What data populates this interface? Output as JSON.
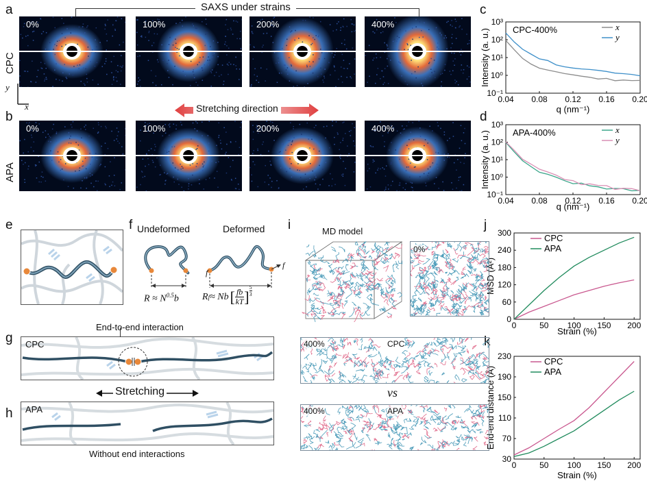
{
  "panels": {
    "a": "a",
    "b": "b",
    "c": "c",
    "d": "d",
    "e": "e",
    "f": "f",
    "g": "g",
    "h": "h",
    "i": "i",
    "j": "j",
    "k": "k"
  },
  "saxs": {
    "title": "SAXS under strains",
    "strains": [
      "0%",
      "100%",
      "200%",
      "400%"
    ],
    "row_cpc": "CPC",
    "row_apa": "APA",
    "axis_x": "x",
    "axis_y": "y",
    "stretching_direction": "Stretching direction"
  },
  "panel_f": {
    "undeformed": "Undeformed",
    "deformed": "Deformed",
    "eq1": "R ≈ N",
    "eq1_exp": "0.5",
    "eq1_tail": "b",
    "eq2_lhs": "R",
    "eq2_sub": "f",
    "eq2_mid": " ≈ Nb",
    "eq2_num": "fb",
    "eq2_den": "kT",
    "eq2_exp_num": "5",
    "eq2_exp_den": "3",
    "force": "f"
  },
  "panel_g": {
    "title": "End-to-end interaction",
    "label": "CPC"
  },
  "panel_h": {
    "label": "APA",
    "caption": "Without end interactions",
    "stretching": "Stretching"
  },
  "panel_i": {
    "md_model": "MD model",
    "strain0": "0%",
    "strain400a": "400%",
    "cpc": "CPC",
    "vs": "vs",
    "strain400b": "400%",
    "apa": "APA"
  },
  "colors": {
    "cpc": "#c9588f",
    "apa": "#1f8a5c",
    "x_line": "#8c8c8c",
    "y_line": "#3d8fc9",
    "x_line_d": "#3aa58a",
    "y_line_d": "#d98fb4",
    "chain": "#4a6a80"
  },
  "chart_data": [
    {
      "id": "c",
      "type": "line",
      "title": "CPC-400%",
      "xlabel": "q (nm⁻¹)",
      "ylabel": "Intensity (a. u.)",
      "yscale": "log",
      "xlim": [
        0.04,
        0.2
      ],
      "ylim": [
        0.1,
        1000
      ],
      "xticks": [
        "0.04",
        "0.08",
        "0.12",
        "0.16",
        "0.20"
      ],
      "yticks": [
        "10⁻¹",
        "10⁰",
        "10¹",
        "10²",
        "10³"
      ],
      "x": [
        0.04,
        0.05,
        0.06,
        0.07,
        0.08,
        0.09,
        0.1,
        0.11,
        0.12,
        0.13,
        0.14,
        0.15,
        0.16,
        0.17,
        0.18,
        0.19,
        0.2
      ],
      "series": [
        {
          "name": "x",
          "values": [
            80,
            25,
            9,
            4.5,
            2.8,
            2.0,
            1.5,
            1.2,
            1.0,
            0.9,
            0.8,
            0.75,
            0.7,
            0.6,
            0.6,
            0.55,
            0.5
          ]
        },
        {
          "name": "y",
          "values": [
            250,
            90,
            35,
            16,
            9,
            6,
            4.5,
            3.5,
            3.0,
            2.5,
            2.0,
            1.8,
            1.6,
            1.4,
            1.2,
            1.1,
            1.0
          ]
        }
      ]
    },
    {
      "id": "d",
      "type": "line",
      "title": "APA-400%",
      "xlabel": "q (nm⁻¹)",
      "ylabel": "Intensity (a. u.)",
      "yscale": "log",
      "xlim": [
        0.04,
        0.2
      ],
      "ylim": [
        0.1,
        1000
      ],
      "xticks": [
        "0.04",
        "0.08",
        "0.12",
        "0.16",
        "0.20"
      ],
      "yticks": [
        "10⁻¹",
        "10⁰",
        "10¹",
        "10²",
        "10³"
      ],
      "x": [
        0.04,
        0.05,
        0.06,
        0.07,
        0.08,
        0.09,
        0.1,
        0.11,
        0.12,
        0.13,
        0.14,
        0.15,
        0.16,
        0.17,
        0.18,
        0.19,
        0.2
      ],
      "series": [
        {
          "name": "x",
          "values": [
            100,
            30,
            9,
            4,
            2.2,
            1.5,
            1.0,
            0.7,
            0.5,
            0.4,
            0.35,
            0.3,
            0.25,
            0.22,
            0.2,
            0.18,
            0.15
          ]
        },
        {
          "name": "y",
          "values": [
            110,
            35,
            11,
            5,
            2.6,
            1.7,
            1.2,
            0.8,
            0.55,
            0.45,
            0.38,
            0.32,
            0.28,
            0.24,
            0.21,
            0.19,
            0.17
          ]
        }
      ]
    },
    {
      "id": "j",
      "type": "line",
      "xlabel": "Strain (%)",
      "ylabel": "MSD (Å²)",
      "xlim": [
        0,
        210
      ],
      "ylim": [
        0,
        300
      ],
      "xticks": [
        "0",
        "50",
        "100",
        "150",
        "200"
      ],
      "yticks": [
        "0",
        "60",
        "120",
        "180",
        "240",
        "300"
      ],
      "x": [
        0,
        25,
        50,
        75,
        100,
        125,
        150,
        175,
        200
      ],
      "series": [
        {
          "name": "CPC",
          "values": [
            0,
            25,
            45,
            65,
            85,
            100,
            115,
            127,
            137
          ]
        },
        {
          "name": "APA",
          "values": [
            0,
            50,
            100,
            145,
            185,
            215,
            240,
            265,
            285
          ]
        }
      ]
    },
    {
      "id": "k",
      "type": "line",
      "xlabel": "Strain (%)",
      "ylabel": "End-end distance (Å)",
      "xlim": [
        0,
        210
      ],
      "ylim": [
        30,
        230
      ],
      "xticks": [
        "0",
        "50",
        "100",
        "150",
        "200"
      ],
      "yticks": [
        "30",
        "70",
        "110",
        "150",
        "190",
        "230"
      ],
      "x": [
        0,
        25,
        50,
        75,
        100,
        125,
        150,
        175,
        200
      ],
      "series": [
        {
          "name": "CPC",
          "values": [
            38,
            52,
            70,
            88,
            105,
            130,
            160,
            190,
            220
          ]
        },
        {
          "name": "APA",
          "values": [
            35,
            42,
            55,
            70,
            85,
            105,
            125,
            145,
            162
          ]
        }
      ]
    }
  ]
}
